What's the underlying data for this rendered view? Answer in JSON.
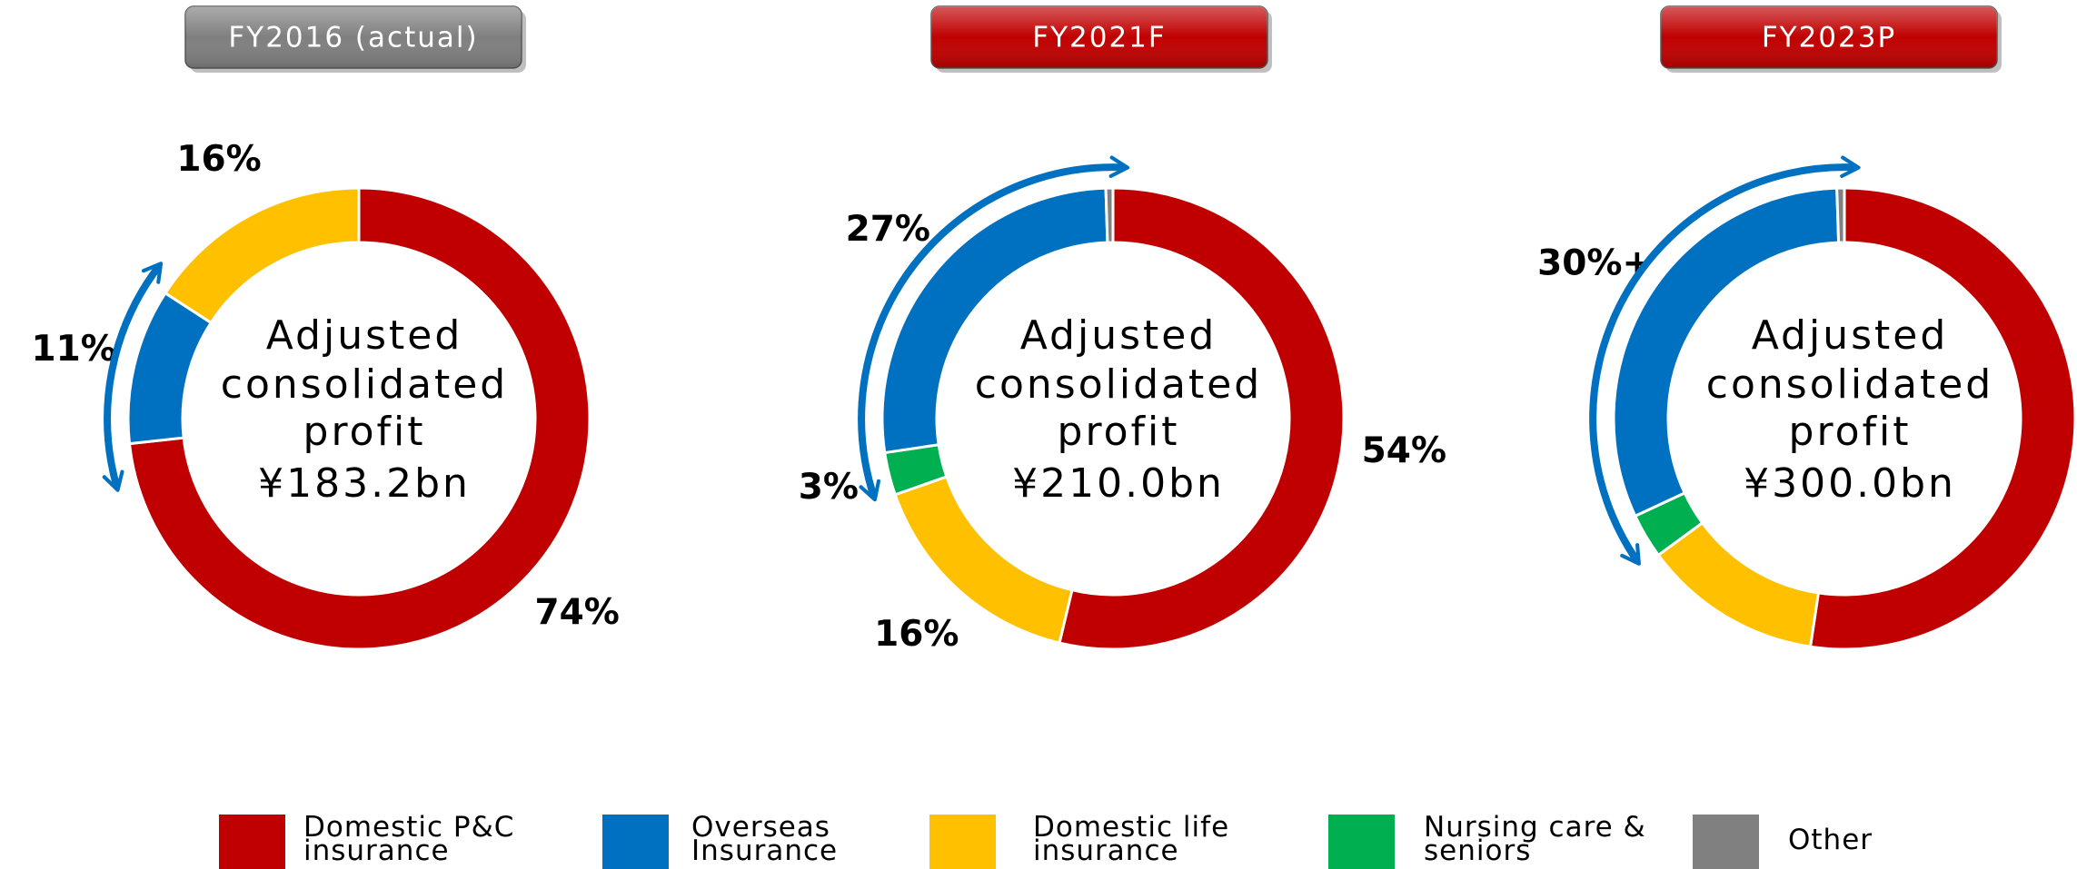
{
  "chart_data": [
    {
      "type": "pie",
      "title": "FY2016 (actual)",
      "title_color": "#7f7f7f",
      "center_text": [
        "Adjusted",
        "consolidated",
        "profit",
        "¥183.2bn"
      ],
      "values": [
        74,
        11,
        16,
        null,
        null
      ],
      "value_labels": [
        "74%",
        "11%",
        "16%",
        null,
        null
      ],
      "slice_order": [
        0,
        1,
        2
      ]
    },
    {
      "type": "pie",
      "title": "FY2021F",
      "title_color": "#c00000",
      "center_text": [
        "Adjusted",
        "consolidated",
        "profit",
        "¥210.0bn"
      ],
      "values": [
        54,
        27,
        16,
        3,
        0.5
      ],
      "value_labels": [
        "54%",
        "27%",
        "16%",
        "3%",
        null
      ],
      "slice_order": [
        0,
        2,
        3,
        1,
        4
      ]
    },
    {
      "type": "pie",
      "title": "FY2023P",
      "title_color": "#c00000",
      "center_text": [
        "Adjusted",
        "consolidated",
        "profit",
        "¥300.0bn"
      ],
      "values": [
        50,
        30,
        12,
        3,
        0.5
      ],
      "value_labels": [
        null,
        "30%+",
        null,
        null,
        null
      ],
      "slice_order": [
        0,
        2,
        3,
        1,
        4
      ]
    }
  ],
  "legend": [
    {
      "name": "Domestic P&C insurance",
      "color": "#c00000"
    },
    {
      "name": "Overseas Insurance",
      "color": "#0070c0"
    },
    {
      "name": "Domestic life insurance",
      "color": "#ffc000"
    },
    {
      "name": "Nursing care & seniors",
      "color": "#00b050"
    },
    {
      "name": "Other",
      "color": "#808080"
    }
  ]
}
